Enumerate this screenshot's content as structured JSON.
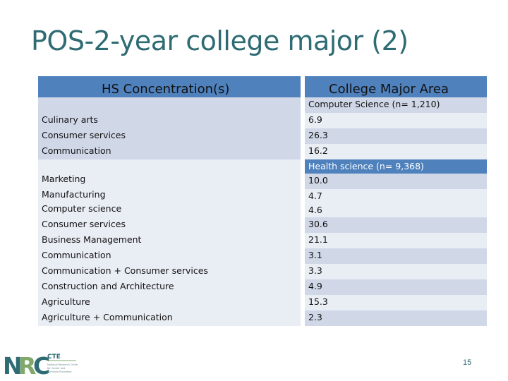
{
  "slide": {
    "title": "POS-2-year college major (2)",
    "page_number": "15"
  },
  "table": {
    "left_header": "HS Concentration(s)",
    "right_header": "College Major Area",
    "groups": [
      {
        "label": "Computer Science (n= 1,210)",
        "rows": [
          {
            "concentration": "Culinary arts",
            "value": "6.9"
          },
          {
            "concentration": "Consumer services",
            "value": "26.3"
          },
          {
            "concentration": "Communication",
            "value": "16.2"
          }
        ]
      },
      {
        "label": "Health science (n= 9,368)",
        "rows": [
          {
            "concentration": "Marketing",
            "value": "10.0"
          },
          {
            "concentration": "Manufacturing",
            "value": "4.7"
          },
          {
            "concentration": "Computer science",
            "value": "4.6"
          },
          {
            "concentration": "Consumer services",
            "value": "30.6"
          },
          {
            "concentration": "Business Management",
            "value": "21.1"
          },
          {
            "concentration": "Communication",
            "value": "3.1"
          },
          {
            "concentration": "Communication + Consumer services",
            "value": "3.3"
          },
          {
            "concentration": "Construction and Architecture",
            "value": "4.9"
          },
          {
            "concentration": "Agriculture",
            "value": "15.3"
          },
          {
            "concentration": "Agriculture + Communication",
            "value": "2.3"
          }
        ]
      }
    ]
  },
  "logo": {
    "letters": "NRC",
    "cte": "CTE",
    "tagline": "National Research Center for Career and Technical Education"
  }
}
